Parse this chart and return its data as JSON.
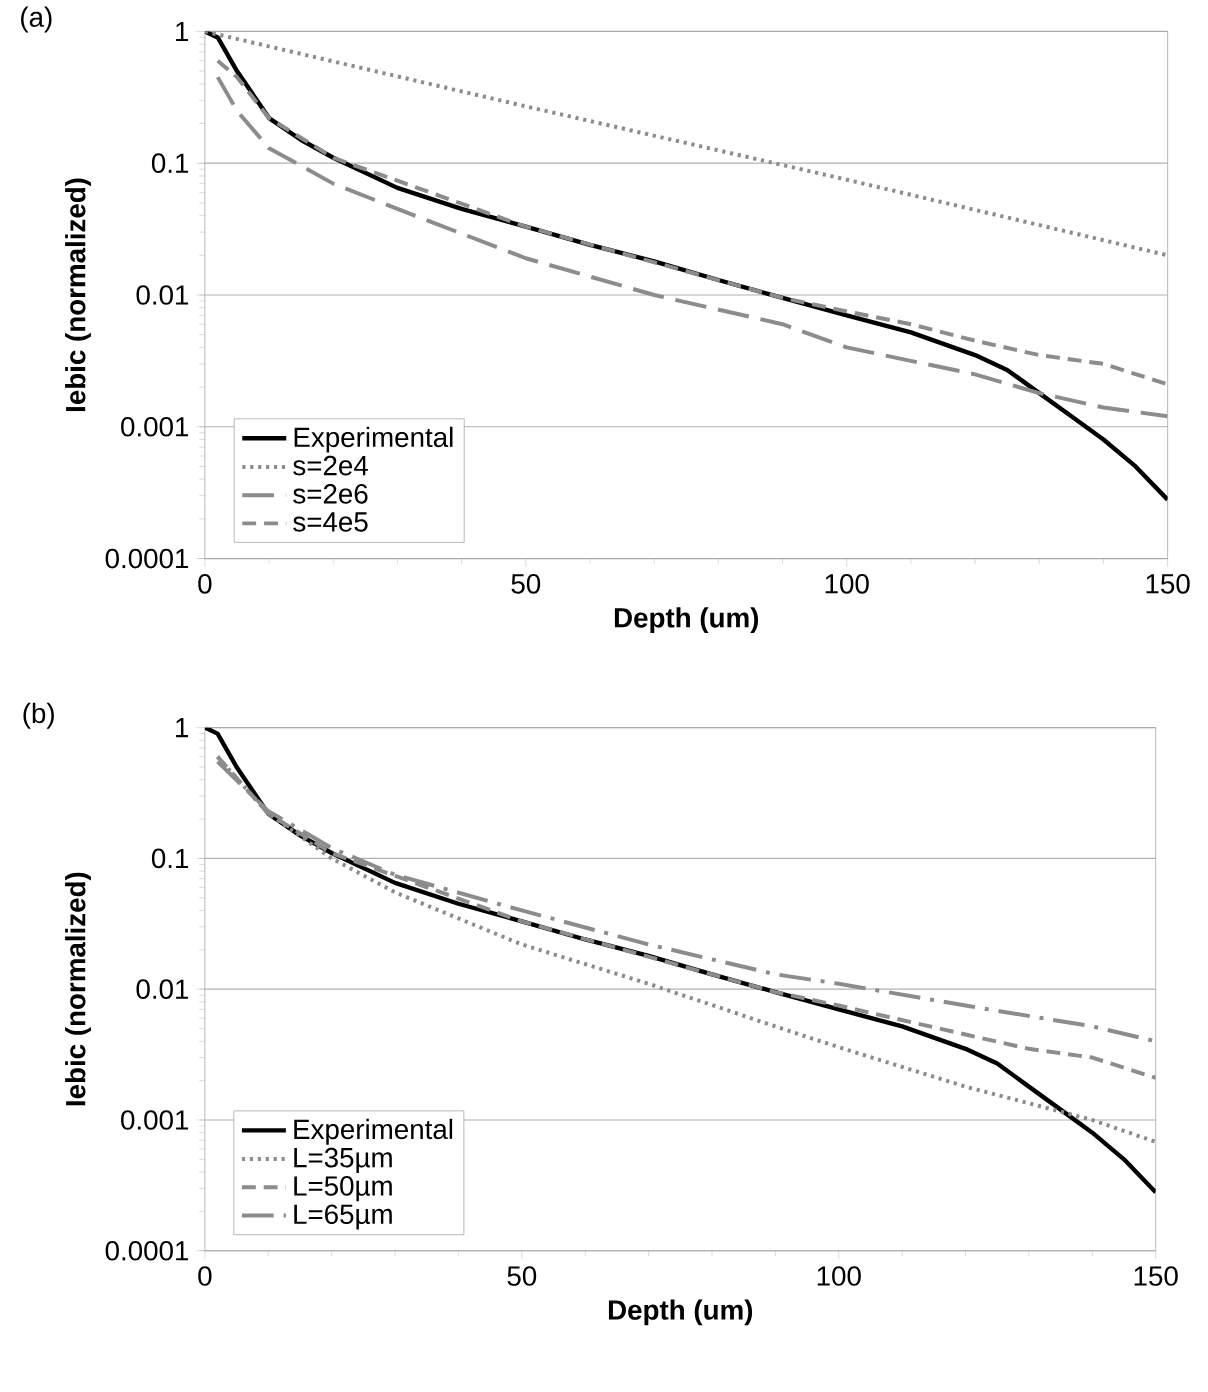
{
  "chart_data": [
    {
      "type": "line",
      "title": "(a)",
      "xlabel": "Depth (um)",
      "ylabel": "Iebic (normalized)",
      "log": "y",
      "grid": "y",
      "legend": "bottom left",
      "xlim": [
        0,
        150
      ],
      "xticks": [
        0,
        50,
        100,
        150
      ],
      "ylim": [
        0.0001,
        1
      ],
      "yticks": [
        0.0001,
        0.001,
        0.01,
        0.1,
        1
      ],
      "series": [
        {
          "name": "Experimental",
          "color": "#000000",
          "line_style": "solid",
          "x": [
            0,
            2,
            5,
            10,
            15,
            20,
            30,
            40,
            50,
            60,
            70,
            80,
            90,
            100,
            110,
            120,
            125,
            130,
            135,
            140,
            145,
            150
          ],
          "values": [
            1,
            0.9,
            0.5,
            0.22,
            0.15,
            0.11,
            0.065,
            0.045,
            0.033,
            0.024,
            0.018,
            0.013,
            0.0095,
            0.007,
            0.0052,
            0.0035,
            0.0027,
            0.0018,
            0.0012,
            0.0008,
            0.0005,
            0.00028
          ]
        },
        {
          "name": "s=2e4",
          "color": "#8c8c8c",
          "line_style": "dotted",
          "x": [
            0,
            50,
            100,
            150
          ],
          "values": [
            1,
            0.27,
            0.075,
            0.02
          ]
        },
        {
          "name": "s=2e6",
          "color": "#8c8c8c",
          "line_style": "long dashed",
          "x": [
            2,
            5,
            10,
            20,
            30,
            50,
            70,
            90,
            100,
            120,
            130,
            140,
            150
          ],
          "values": [
            0.45,
            0.25,
            0.13,
            0.07,
            0.045,
            0.019,
            0.01,
            0.006,
            0.004,
            0.0025,
            0.0018,
            0.0014,
            0.0012
          ]
        },
        {
          "name": "s=4e5",
          "color": "#8c8c8c",
          "line_style": "dashed",
          "x": [
            2,
            5,
            10,
            20,
            50,
            90,
            100,
            110,
            120,
            130,
            140,
            150
          ],
          "values": [
            0.6,
            0.45,
            0.22,
            0.11,
            0.033,
            0.0095,
            0.0075,
            0.006,
            0.0045,
            0.0035,
            0.003,
            0.0021
          ]
        }
      ]
    },
    {
      "type": "line",
      "title": "(b)",
      "xlabel": "Depth (um)",
      "ylabel": "Iebic (normalized)",
      "log": "y",
      "grid": "y",
      "legend": "bottom left",
      "xlim": [
        0,
        150
      ],
      "xticks": [
        0,
        50,
        100,
        150
      ],
      "ylim": [
        0.0001,
        1
      ],
      "yticks": [
        0.0001,
        0.001,
        0.01,
        0.1,
        1
      ],
      "series": [
        {
          "name": "Experimental",
          "color": "#000000",
          "line_style": "solid",
          "x": [
            0,
            2,
            5,
            10,
            15,
            20,
            30,
            40,
            50,
            60,
            70,
            80,
            90,
            100,
            110,
            120,
            125,
            130,
            135,
            140,
            145,
            150
          ],
          "values": [
            1,
            0.9,
            0.5,
            0.22,
            0.15,
            0.11,
            0.065,
            0.045,
            0.033,
            0.024,
            0.018,
            0.013,
            0.0095,
            0.007,
            0.0052,
            0.0035,
            0.0027,
            0.0018,
            0.0012,
            0.0008,
            0.0005,
            0.00028
          ]
        },
        {
          "name": "L=35µm",
          "color": "#8c8c8c",
          "line_style": "dotted",
          "x": [
            2,
            10,
            20,
            30,
            50,
            70,
            90,
            100,
            120,
            140,
            150
          ],
          "values": [
            0.6,
            0.22,
            0.1,
            0.055,
            0.022,
            0.011,
            0.0052,
            0.0036,
            0.0018,
            0.001,
            0.00068
          ]
        },
        {
          "name": "L=50µm",
          "color": "#8c8c8c",
          "line_style": "dashed",
          "x": [
            2,
            10,
            20,
            50,
            90,
            100,
            120,
            130,
            140,
            150
          ],
          "values": [
            0.6,
            0.22,
            0.11,
            0.033,
            0.0095,
            0.0075,
            0.0045,
            0.0035,
            0.003,
            0.0021
          ]
        },
        {
          "name": "L=65µm",
          "color": "#8c8c8c",
          "line_style": "dash dot",
          "x": [
            2,
            10,
            20,
            30,
            50,
            70,
            90,
            100,
            120,
            140,
            150
          ],
          "values": [
            0.55,
            0.23,
            0.12,
            0.075,
            0.04,
            0.022,
            0.013,
            0.011,
            0.0075,
            0.0052,
            0.004
          ]
        }
      ]
    }
  ]
}
